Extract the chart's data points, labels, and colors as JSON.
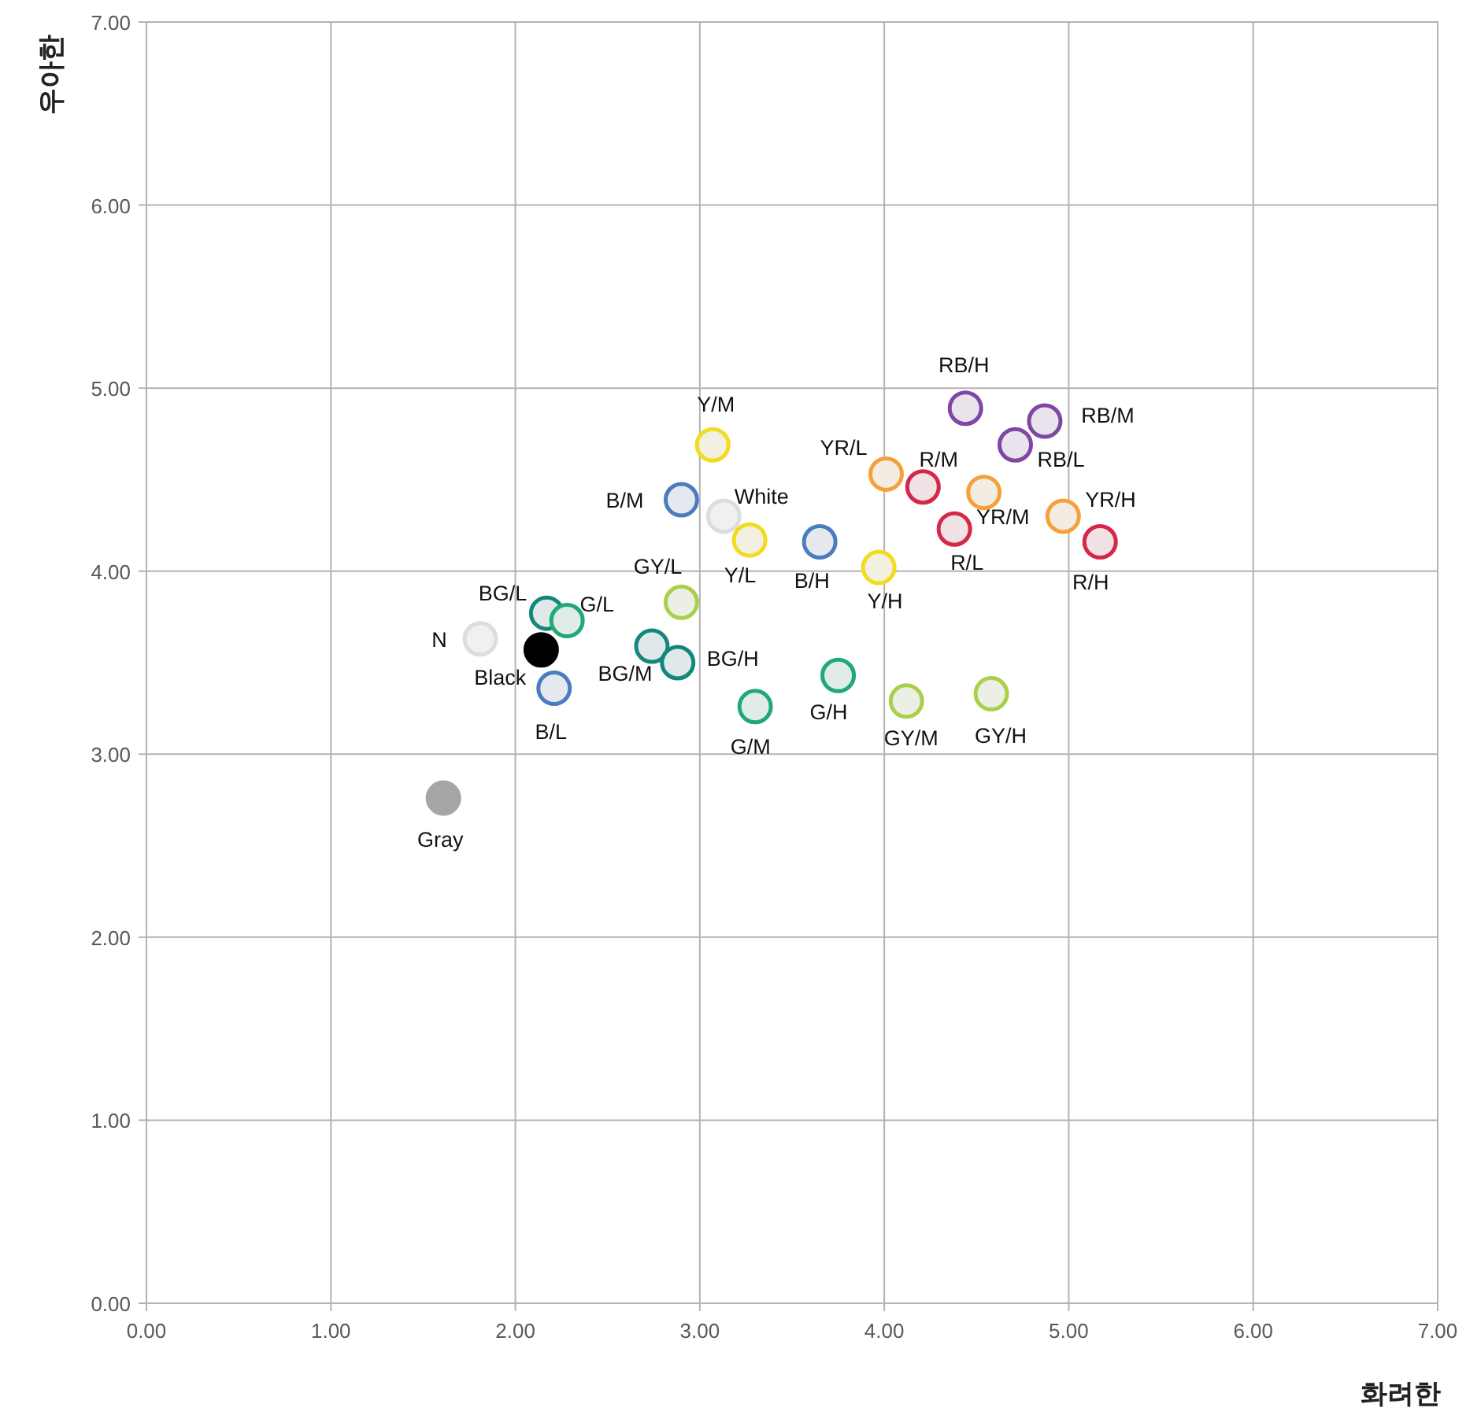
{
  "chart_data": {
    "type": "scatter",
    "xlabel": "화려한",
    "ylabel": "우아한",
    "xlim": [
      0,
      7
    ],
    "ylim": [
      0,
      7
    ],
    "grid": true,
    "xticks": [
      {
        "value": 0,
        "label": "0.00"
      },
      {
        "value": 1,
        "label": "1.00"
      },
      {
        "value": 2,
        "label": "2.00"
      },
      {
        "value": 3,
        "label": "3.00"
      },
      {
        "value": 4,
        "label": "4.00"
      },
      {
        "value": 5,
        "label": "5.00"
      },
      {
        "value": 6,
        "label": "6.00"
      },
      {
        "value": 7,
        "label": "7.00"
      }
    ],
    "yticks": [
      {
        "value": 0,
        "label": "0.00"
      },
      {
        "value": 1,
        "label": "1.00"
      },
      {
        "value": 2,
        "label": "2.00"
      },
      {
        "value": 3,
        "label": "3.00"
      },
      {
        "value": 4,
        "label": "4.00"
      },
      {
        "value": 5,
        "label": "5.00"
      },
      {
        "value": 6,
        "label": "6.00"
      },
      {
        "value": 7,
        "label": "7.00"
      }
    ],
    "series": [
      {
        "name": "N",
        "color": "#dddddd",
        "x": [
          1.81
        ],
        "values": [
          3.63
        ]
      },
      {
        "name": "Black",
        "color": "#000000",
        "x": [
          2.14
        ],
        "values": [
          3.57
        ]
      },
      {
        "name": "B/L",
        "color": "#4a7cc0",
        "x": [
          2.21
        ],
        "values": [
          3.36
        ]
      },
      {
        "name": "BG/L",
        "color": "#14877c",
        "x": [
          2.17
        ],
        "values": [
          3.77
        ]
      },
      {
        "name": "G/L",
        "color": "#1faa74",
        "x": [
          2.28
        ],
        "values": [
          3.73
        ]
      },
      {
        "name": "Gray",
        "color": "#a6a6a6",
        "x": [
          1.61
        ],
        "values": [
          2.76
        ]
      },
      {
        "name": "GY/L",
        "color": "#a9d04a",
        "x": [
          2.9
        ],
        "values": [
          3.83
        ]
      },
      {
        "name": "BG/M",
        "color": "#14877c",
        "x": [
          2.74
        ],
        "values": [
          3.59
        ]
      },
      {
        "name": "BG/H",
        "color": "#14877c",
        "x": [
          2.88
        ],
        "values": [
          3.5
        ]
      },
      {
        "name": "B/M",
        "color": "#4a7cc0",
        "x": [
          2.9
        ],
        "values": [
          4.39
        ]
      },
      {
        "name": "Y/M",
        "color": "#f2dc1f",
        "x": [
          3.07
        ],
        "values": [
          4.69
        ]
      },
      {
        "name": "White",
        "color": "#dddddd",
        "x": [
          3.13
        ],
        "values": [
          4.3
        ]
      },
      {
        "name": "Y/L",
        "color": "#f2dc1f",
        "x": [
          3.27
        ],
        "values": [
          4.17
        ]
      },
      {
        "name": "B/H",
        "color": "#4a7cc0",
        "x": [
          3.65
        ],
        "values": [
          4.16
        ]
      },
      {
        "name": "G/M",
        "color": "#1faa74",
        "x": [
          3.3
        ],
        "values": [
          3.26
        ]
      },
      {
        "name": "G/H",
        "color": "#1faa74",
        "x": [
          3.75
        ],
        "values": [
          3.43
        ]
      },
      {
        "name": "Y/H",
        "color": "#f2dc1f",
        "x": [
          3.97
        ],
        "values": [
          4.02
        ]
      },
      {
        "name": "GY/M",
        "color": "#a9d04a",
        "x": [
          4.12
        ],
        "values": [
          3.29
        ]
      },
      {
        "name": "GY/H",
        "color": "#a9d04a",
        "x": [
          4.58
        ],
        "values": [
          3.33
        ]
      },
      {
        "name": "YR/L",
        "color": "#f4a13b",
        "x": [
          4.01
        ],
        "values": [
          4.53
        ]
      },
      {
        "name": "R/M",
        "color": "#d6264a",
        "x": [
          4.21
        ],
        "values": [
          4.46
        ]
      },
      {
        "name": "R/L",
        "color": "#d6264a",
        "x": [
          4.38
        ],
        "values": [
          4.23
        ]
      },
      {
        "name": "YR/M",
        "color": "#f4a13b",
        "x": [
          4.54
        ],
        "values": [
          4.43
        ]
      },
      {
        "name": "RB/H",
        "color": "#7f46a6",
        "x": [
          4.44
        ],
        "values": [
          4.89
        ]
      },
      {
        "name": "RB/L",
        "color": "#7f46a6",
        "x": [
          4.71
        ],
        "values": [
          4.69
        ]
      },
      {
        "name": "RB/M",
        "color": "#7f46a6",
        "x": [
          4.87
        ],
        "values": [
          4.82
        ]
      },
      {
        "name": "YR/H",
        "color": "#f4a13b",
        "x": [
          4.97
        ],
        "values": [
          4.3
        ]
      },
      {
        "name": "R/H",
        "color": "#d6264a",
        "x": [
          5.17
        ],
        "values": [
          4.16
        ]
      }
    ]
  }
}
